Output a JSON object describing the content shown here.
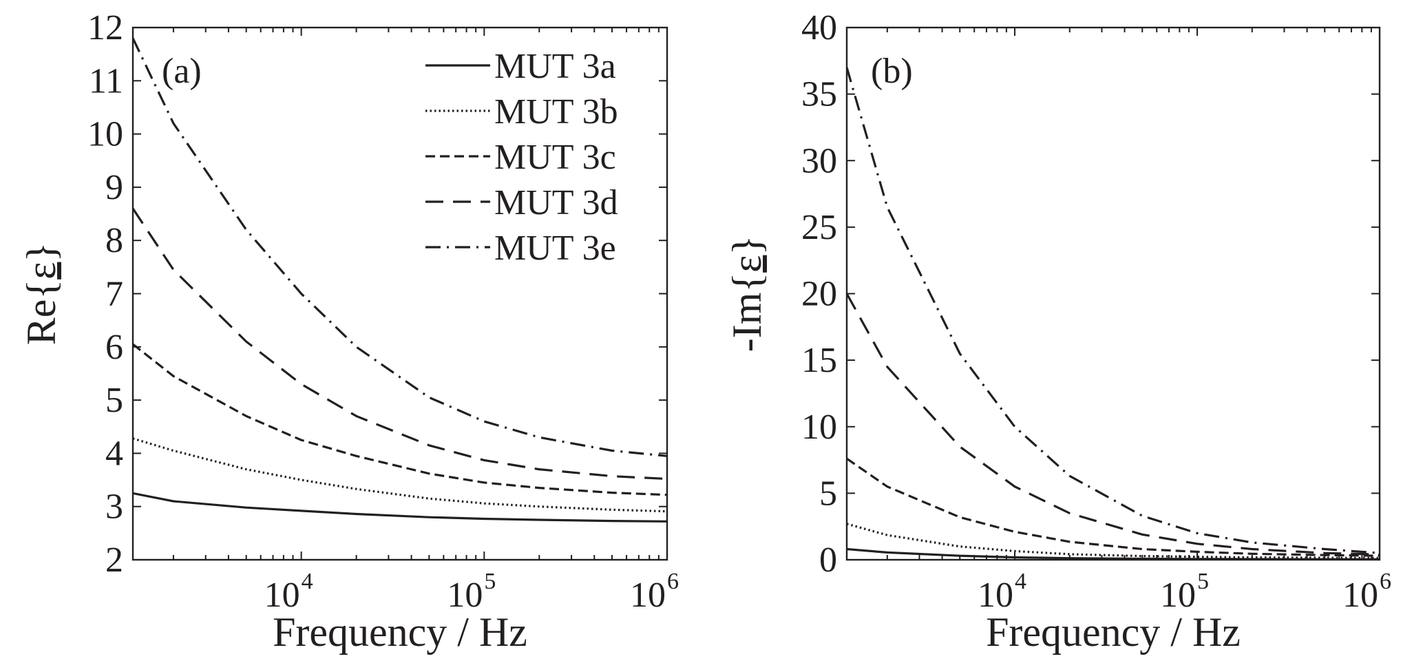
{
  "chart_data": [
    {
      "type": "line",
      "panel_label": "(a)",
      "xlabel": "Frequency / Hz",
      "ylabel_prefix": "Re",
      "ylabel_symbol": "ε",
      "xscale": "log",
      "xlim": [
        1200,
        1000000
      ],
      "ylim": [
        2,
        12
      ],
      "yticks": [
        2,
        3,
        4,
        5,
        6,
        7,
        8,
        9,
        10,
        11,
        12
      ],
      "xticks": [
        {
          "value": 10000,
          "base": "10",
          "exp": "4"
        },
        {
          "value": 100000,
          "base": "10",
          "exp": "5"
        },
        {
          "value": 1000000,
          "base": "10",
          "exp": "6"
        }
      ],
      "legend": {
        "position": "top-right",
        "entries": [
          {
            "label": "MUT 3a",
            "style": "solid"
          },
          {
            "label": "MUT 3b",
            "style": "dotted"
          },
          {
            "label": "MUT 3c",
            "style": "short-dash"
          },
          {
            "label": "MUT 3d",
            "style": "dash"
          },
          {
            "label": "MUT 3e",
            "style": "dash-dot"
          }
        ]
      },
      "series": [
        {
          "name": "MUT 3a",
          "style": "solid",
          "x": [
            1200,
            2000,
            5000,
            10000,
            20000,
            50000,
            100000,
            200000,
            500000,
            1000000
          ],
          "y": [
            3.25,
            3.1,
            2.98,
            2.92,
            2.86,
            2.8,
            2.77,
            2.75,
            2.73,
            2.72
          ]
        },
        {
          "name": "MUT 3b",
          "style": "dotted",
          "x": [
            1200,
            2000,
            5000,
            10000,
            20000,
            50000,
            100000,
            200000,
            500000,
            1000000
          ],
          "y": [
            4.28,
            4.05,
            3.7,
            3.5,
            3.33,
            3.15,
            3.06,
            3.0,
            2.94,
            2.91
          ]
        },
        {
          "name": "MUT 3c",
          "style": "short-dash",
          "x": [
            1200,
            2000,
            5000,
            10000,
            20000,
            50000,
            100000,
            200000,
            500000,
            1000000
          ],
          "y": [
            6.05,
            5.45,
            4.7,
            4.25,
            3.95,
            3.62,
            3.45,
            3.35,
            3.26,
            3.22
          ]
        },
        {
          "name": "MUT 3d",
          "style": "dash",
          "x": [
            1200,
            2000,
            5000,
            10000,
            20000,
            50000,
            100000,
            200000,
            500000,
            1000000
          ],
          "y": [
            8.6,
            7.45,
            6.1,
            5.3,
            4.7,
            4.15,
            3.87,
            3.7,
            3.57,
            3.52
          ]
        },
        {
          "name": "MUT 3e",
          "style": "dash-dot",
          "x": [
            1200,
            2000,
            5000,
            10000,
            20000,
            50000,
            100000,
            200000,
            500000,
            1000000
          ],
          "y": [
            11.8,
            10.2,
            8.2,
            7.0,
            6.0,
            5.05,
            4.6,
            4.3,
            4.05,
            3.95
          ]
        }
      ]
    },
    {
      "type": "line",
      "panel_label": "(b)",
      "xlabel": "Frequency / Hz",
      "ylabel_prefix": "-Im",
      "ylabel_symbol": "ε",
      "xscale": "log",
      "xlim": [
        1200,
        1000000
      ],
      "ylim": [
        0,
        40
      ],
      "yticks": [
        0,
        5,
        10,
        15,
        20,
        25,
        30,
        35,
        40
      ],
      "xticks": [
        {
          "value": 10000,
          "base": "10",
          "exp": "4"
        },
        {
          "value": 100000,
          "base": "10",
          "exp": "5"
        },
        {
          "value": 1000000,
          "base": "10",
          "exp": "6"
        }
      ],
      "series": [
        {
          "name": "MUT 3a",
          "style": "solid",
          "x": [
            1200,
            2000,
            5000,
            10000,
            20000,
            50000,
            100000,
            200000,
            500000,
            1000000
          ],
          "y": [
            0.8,
            0.55,
            0.3,
            0.18,
            0.12,
            0.08,
            0.06,
            0.05,
            0.04,
            0.03
          ]
        },
        {
          "name": "MUT 3b",
          "style": "dotted",
          "x": [
            1200,
            2000,
            5000,
            10000,
            20000,
            50000,
            100000,
            200000,
            500000,
            1000000
          ],
          "y": [
            2.7,
            1.85,
            1.0,
            0.65,
            0.42,
            0.28,
            0.22,
            0.18,
            0.15,
            0.13
          ]
        },
        {
          "name": "MUT 3c",
          "style": "short-dash",
          "x": [
            1200,
            2000,
            5000,
            10000,
            20000,
            50000,
            100000,
            200000,
            500000,
            1000000
          ],
          "y": [
            7.6,
            5.5,
            3.2,
            2.1,
            1.35,
            0.8,
            0.6,
            0.45,
            0.35,
            0.3
          ]
        },
        {
          "name": "MUT 3d",
          "style": "dash",
          "x": [
            1200,
            2000,
            5000,
            10000,
            20000,
            50000,
            100000,
            200000,
            500000,
            1000000
          ],
          "y": [
            20.0,
            14.5,
            8.5,
            5.5,
            3.5,
            1.9,
            1.2,
            0.8,
            0.5,
            0.4
          ]
        },
        {
          "name": "MUT 3e",
          "style": "dash-dot",
          "x": [
            1200,
            2000,
            5000,
            10000,
            20000,
            50000,
            100000,
            200000,
            500000,
            1000000
          ],
          "y": [
            37.0,
            26.5,
            15.5,
            10.0,
            6.3,
            3.3,
            2.0,
            1.3,
            0.8,
            0.5
          ]
        }
      ]
    }
  ]
}
